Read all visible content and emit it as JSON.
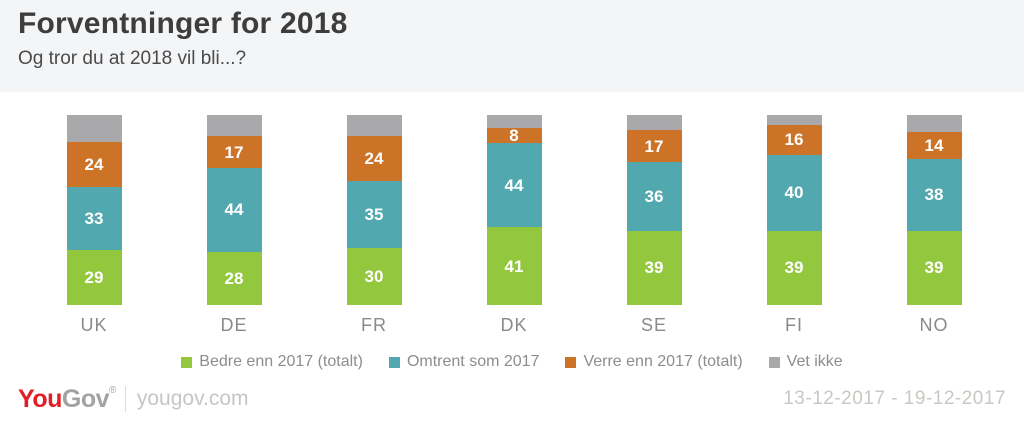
{
  "header": {
    "title": "Forventninger for 2018",
    "subtitle": "Og tror du at 2018 vil bli...?"
  },
  "chart_data": {
    "type": "bar",
    "stacked": true,
    "orientation": "vertical",
    "value_unit": "percent",
    "ylim": [
      0,
      100
    ],
    "grid": false,
    "legend_position": "bottom",
    "categories": [
      "UK",
      "DE",
      "FR",
      "DK",
      "SE",
      "FI",
      "NO"
    ],
    "series": [
      {
        "name": "Bedre enn 2017 (totalt)",
        "color": "#93c83e",
        "show_value_labels": true,
        "values": [
          29,
          28,
          30,
          41,
          39,
          39,
          39
        ]
      },
      {
        "name": "Omtrent som 2017",
        "color": "#51a8ae",
        "show_value_labels": true,
        "values": [
          33,
          44,
          35,
          44,
          36,
          40,
          38
        ]
      },
      {
        "name": "Verre enn 2017 (totalt)",
        "color": "#cd7327",
        "show_value_labels": true,
        "values": [
          24,
          17,
          24,
          8,
          17,
          16,
          14
        ]
      },
      {
        "name": "Vet ikke",
        "color": "#a9a9ab",
        "show_value_labels": false,
        "values": [
          14,
          11,
          11,
          7,
          8,
          5,
          9
        ]
      }
    ]
  },
  "footer": {
    "logo_you": "You",
    "logo_gov": "Gov",
    "logo_mark": "®",
    "site": "yougov.com",
    "date_range": "13-12-2017 - 19-12-2017"
  }
}
